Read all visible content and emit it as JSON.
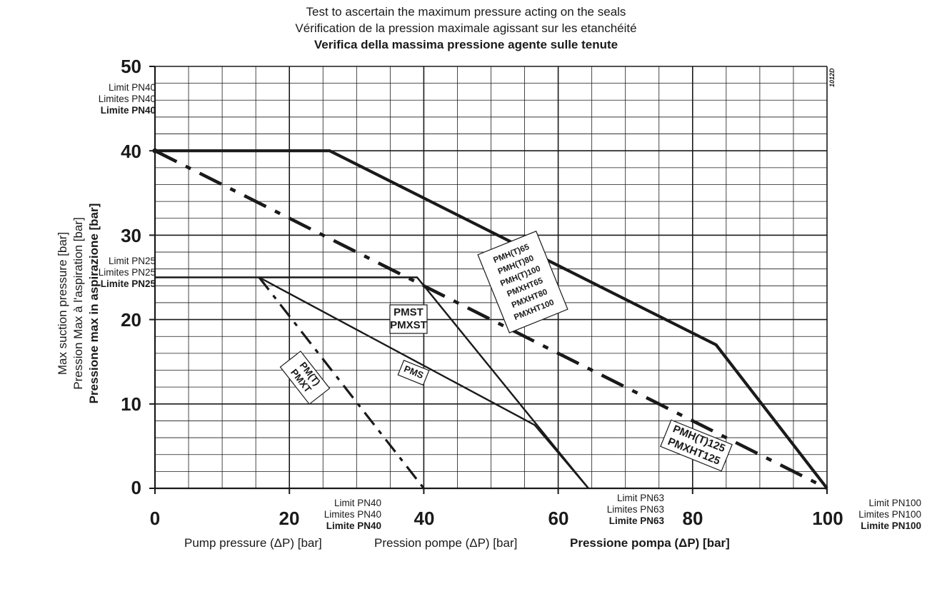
{
  "title": {
    "line1": "Test to ascertain the maximum pressure acting on the seals",
    "line2": "Vérification de la pression maximale agissant sur les etanchéité",
    "line3": "Verifica della massima pressione agente sulle tenute"
  },
  "code": "1012D",
  "y_axis": {
    "line1": "Max suction pressure [bar]",
    "line2": "Pression Max à l'aspiration [bar]",
    "line3": "Pressione max in aspirazione [bar]"
  },
  "x_axis": {
    "en": "Pump pressure (ΔP) [bar]",
    "fr": "Pression pompe (ΔP) [bar]",
    "it": "Pressione pompa (ΔP) [bar]"
  },
  "limits": {
    "pn40_left": {
      "en": "Limit PN40",
      "fr": "Limites PN40",
      "it": "Limite PN40"
    },
    "pn25_left": {
      "en": "Limit PN25",
      "fr": "Limites PN25",
      "it": "Limite PN25"
    },
    "pn40_bottom": {
      "en": "Limit PN40",
      "fr": "Limites PN40",
      "it": "Limite PN40"
    },
    "pn63_bottom": {
      "en": "Limit PN63",
      "fr": "Limites PN63",
      "it": "Limite PN63"
    },
    "pn100_bottom": {
      "en": "Limit PN100",
      "fr": "Limites PN100",
      "it": "Limite PN100"
    }
  },
  "chart_data": {
    "type": "line",
    "xlim": [
      0,
      100
    ],
    "ylim": [
      0,
      50
    ],
    "x_ticks": [
      "0",
      "20",
      "40",
      "60",
      "80",
      "100"
    ],
    "y_ticks": [
      "0",
      "10",
      "20",
      "30",
      "40",
      "50"
    ],
    "grid": true,
    "series": [
      {
        "name": "PMH(T)65 PMH(T)80 PMH(T)100 PMXHT65 PMXHT80 PMXHT100",
        "style": "solid-thick",
        "x": [
          0,
          26,
          83.5,
          100
        ],
        "y": [
          40,
          40,
          17,
          0
        ]
      },
      {
        "name": "PMST PMXST",
        "style": "solid",
        "x": [
          0,
          39,
          64.5
        ],
        "y": [
          25,
          25,
          0
        ]
      },
      {
        "name": "PMS",
        "style": "solid",
        "x": [
          15.5,
          56.5,
          64.5
        ],
        "y": [
          25,
          7.5,
          0
        ]
      },
      {
        "name": "PM(T) PMXT",
        "style": "dashed",
        "x": [
          15.5,
          40
        ],
        "y": [
          25,
          0
        ]
      },
      {
        "name": "PMH(T)125 PMXHT125",
        "style": "dashed-thick",
        "x": [
          0,
          100
        ],
        "y": [
          40,
          0
        ]
      }
    ],
    "labels": {
      "pmh": [
        "PMH(T)65",
        "PMH(T)80",
        "PMH(T)100",
        "PMXHT65",
        "PMXHT80",
        "PMXHT100"
      ],
      "pmst": [
        "PMST",
        "PMXST"
      ],
      "pms": "PMS",
      "pmt": [
        "PM(T)",
        "PMXT"
      ],
      "pmh125": [
        "PMH(T)125",
        "PMXHT125"
      ]
    }
  }
}
